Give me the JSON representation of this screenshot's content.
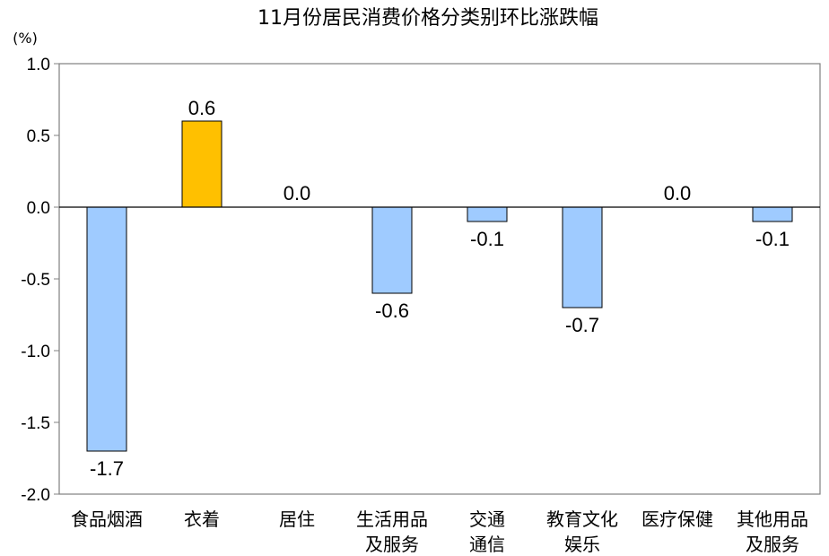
{
  "chart_data": {
    "type": "bar",
    "title": "11月份居民消费价格分类别环比涨跌幅",
    "unit": "(%)",
    "categories": [
      [
        "食品烟酒"
      ],
      [
        "衣着"
      ],
      [
        "居住"
      ],
      [
        "生活用品",
        "及服务"
      ],
      [
        "交通",
        "通信"
      ],
      [
        "教育文化",
        "娱乐"
      ],
      [
        "医疗保健"
      ],
      [
        "其他用品",
        "及服务"
      ]
    ],
    "values": [
      -1.7,
      0.6,
      0.0,
      -0.6,
      -0.1,
      -0.7,
      0.0,
      -0.1
    ],
    "data_labels": [
      "-1.7",
      "0.6",
      "0.0",
      "-0.6",
      "-0.1",
      "-0.7",
      "0.0",
      "-0.1"
    ],
    "ylim": [
      -2.0,
      1.0
    ],
    "yticks": [
      "1.0",
      "0.5",
      "0.0",
      "-0.5",
      "-1.0",
      "-1.5",
      "-2.0"
    ],
    "highlight_index": 1,
    "colors": {
      "bar": "#9FCBFF",
      "highlight": "#FFC000",
      "stroke": "#000000",
      "axis": "#808080"
    },
    "grid": false,
    "legend": "none"
  }
}
